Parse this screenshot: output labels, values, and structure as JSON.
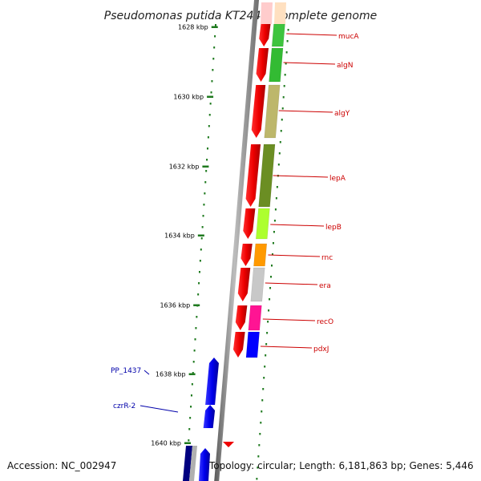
{
  "title": "Pseudomonas putida KT2440, complete genome",
  "accession_text": "Accession: NC_002947",
  "stats_text": "Topology: circular; Length: 6,181,863 bp; Genes: 5,446",
  "colors": {
    "backbone": "#8c8c8c",
    "cds": "#ee0000",
    "tick": "#1f7a1f",
    "label_right": "#cc0000",
    "label_left": "#0000aa",
    "reverse_cds": "#0000ee"
  },
  "chart_data": {
    "type": "genome-map",
    "title": "Pseudomonas putida KT2440, complete genome",
    "axis_unit": "kbp",
    "ticks": [
      "1628 kbp",
      "1630 kbp",
      "1632 kbp",
      "1634 kbp",
      "1636 kbp",
      "1638 kbp",
      "1640 kbp"
    ],
    "forward_genes": [
      {
        "label": "mucA",
        "cog_color": "#3ec43e"
      },
      {
        "label": "algN",
        "cog_color": "#33bb33"
      },
      {
        "label": "algY",
        "cog_color": "#bdb76b"
      },
      {
        "label": "lepA",
        "cog_color": "#6b8e23"
      },
      {
        "label": "lepB",
        "cog_color": "#adff2f"
      },
      {
        "label": "rnc",
        "cog_color": "#ff9900"
      },
      {
        "label": "era",
        "cog_color": "#c8c8c8"
      },
      {
        "label": "recO",
        "cog_color": "#ff1493"
      },
      {
        "label": "pdxJ",
        "cog_color": "#0000ff"
      }
    ],
    "reverse_genes": [
      {
        "label": "PP_1437"
      },
      {
        "label": "czrR-2"
      }
    ]
  }
}
